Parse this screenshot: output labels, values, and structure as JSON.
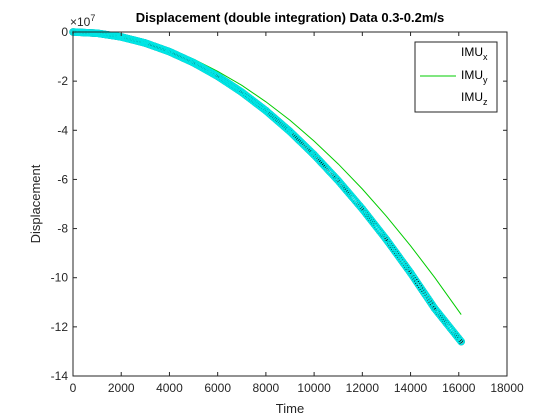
{
  "chart_data": {
    "type": "line",
    "title": "Displacement (double integration) Data 0.3-0.2m/s",
    "xlabel": "Time",
    "ylabel": "Displacement",
    "exponent_label": "×10",
    "exponent_power": "7",
    "xlim": [
      0,
      18000
    ],
    "ylim": [
      -14,
      0
    ],
    "y_scale_factor": 10000000,
    "x_ticks": [
      0,
      2000,
      4000,
      6000,
      8000,
      10000,
      12000,
      14000,
      16000,
      18000
    ],
    "y_ticks": [
      0,
      -2,
      -4,
      -6,
      -8,
      -10,
      -12,
      -14
    ],
    "grid": false,
    "legend_position": "top-right",
    "series": [
      {
        "name": "IMU",
        "name_sub": "x",
        "style": "circle-markers",
        "color": "#000000",
        "x": [
          0,
          1000,
          2000,
          3000,
          4000,
          5000,
          6000,
          7000,
          8000,
          9000,
          10000,
          11000,
          12000,
          13000,
          14000,
          15000,
          16100
        ],
        "y": [
          0,
          -0.05,
          -0.2,
          -0.45,
          -0.8,
          -1.25,
          -1.8,
          -2.45,
          -3.2,
          -4.05,
          -5.0,
          -6.05,
          -7.2,
          -8.45,
          -9.8,
          -11.25,
          -12.6
        ]
      },
      {
        "name": "IMU",
        "name_sub": "y",
        "style": "line",
        "color": "#00cc00",
        "x": [
          0,
          1000,
          2000,
          3000,
          4000,
          5000,
          6000,
          7000,
          8000,
          9000,
          10000,
          11000,
          12000,
          13000,
          14000,
          15000,
          16100
        ],
        "y": [
          0,
          -0.044,
          -0.18,
          -0.4,
          -0.71,
          -1.1,
          -1.6,
          -2.17,
          -2.84,
          -3.59,
          -4.44,
          -5.37,
          -6.39,
          -7.5,
          -8.7,
          -9.99,
          -11.5
        ]
      },
      {
        "name": "IMU",
        "name_sub": "z",
        "style": "circle-markers",
        "color": "#00e5e5",
        "x": [
          0,
          1000,
          2000,
          3000,
          4000,
          5000,
          6000,
          7000,
          8000,
          9000,
          10000,
          11000,
          12000,
          13000,
          14000,
          15000,
          16100
        ],
        "y": [
          0,
          -0.05,
          -0.2,
          -0.45,
          -0.8,
          -1.25,
          -1.8,
          -2.45,
          -3.2,
          -4.05,
          -5.0,
          -6.05,
          -7.2,
          -8.45,
          -9.8,
          -11.25,
          -12.6
        ]
      }
    ]
  }
}
